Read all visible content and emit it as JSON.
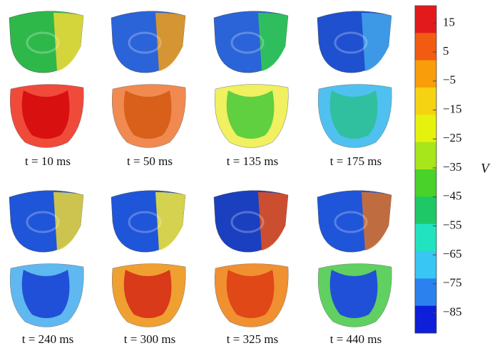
{
  "panels": [
    {
      "label": "t = 10 ms"
    },
    {
      "label": "t = 50 ms"
    },
    {
      "label": "t = 135 ms"
    },
    {
      "label": "t = 175 ms"
    },
    {
      "label": "t = 240 ms"
    },
    {
      "label": "t = 300 ms"
    },
    {
      "label": "t = 325 ms"
    },
    {
      "label": "t = 440 ms"
    }
  ],
  "colorbar": {
    "label": "V",
    "range": [
      -92,
      21
    ],
    "colors": [
      "#e31a1c",
      "#f25c12",
      "#f99d0a",
      "#f6d312",
      "#e5f20e",
      "#a6e61a",
      "#48d22a",
      "#1fc867",
      "#22e3c0",
      "#38c6f4",
      "#2b82ee",
      "#0d1fd8"
    ],
    "ticks": [
      {
        "value": 15,
        "label": "15"
      },
      {
        "value": 5,
        "label": "5"
      },
      {
        "value": -5,
        "label": "−5"
      },
      {
        "value": -15,
        "label": "−15"
      },
      {
        "value": -25,
        "label": "−25"
      },
      {
        "value": -35,
        "label": "−35"
      },
      {
        "value": -45,
        "label": "−45"
      },
      {
        "value": -55,
        "label": "−55"
      },
      {
        "value": -65,
        "label": "−65"
      },
      {
        "value": -75,
        "label": "−75"
      },
      {
        "value": -85,
        "label": "−85"
      }
    ]
  }
}
